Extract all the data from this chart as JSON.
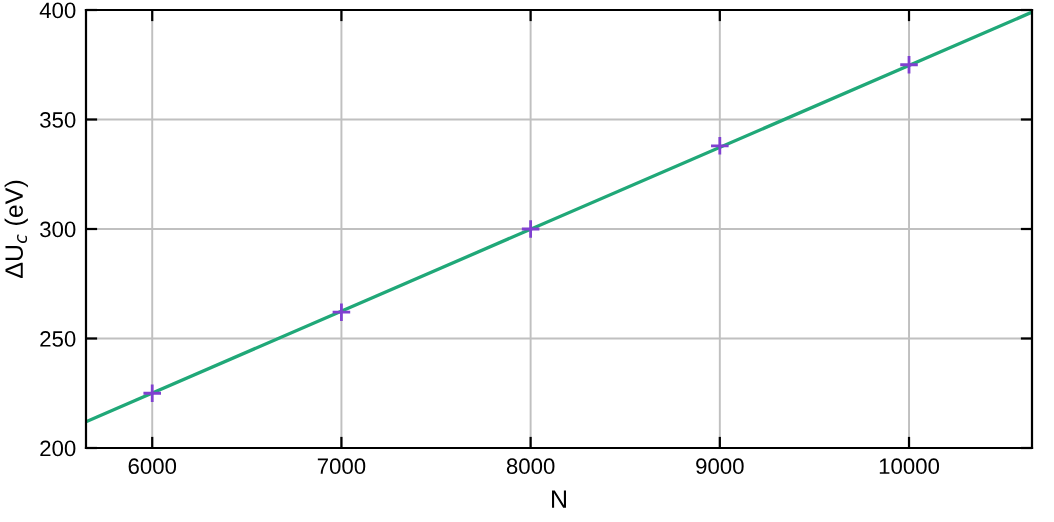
{
  "chart_data": {
    "type": "scatter",
    "xlabel": "N",
    "ylabel": "ΔU$_{c}$ (eV)",
    "xlim": [
      5650,
      10650
    ],
    "ylim": [
      200,
      400
    ],
    "xticks": [
      6000,
      7000,
      8000,
      9000,
      10000
    ],
    "yticks": [
      200,
      250,
      300,
      350,
      400
    ],
    "grid": true,
    "legend": false,
    "series": [
      {
        "color": "#8040d0",
        "marker": "cross",
        "x": [
          6000,
          7000,
          8000,
          9000,
          10000
        ],
        "values": [
          225,
          262,
          300,
          338,
          375
        ]
      },
      {
        "type": "line",
        "color": "#20a878",
        "marker": "none",
        "line_style": "solid",
        "x": [
          5650,
          10650
        ],
        "values": [
          212,
          399
        ]
      }
    ]
  }
}
